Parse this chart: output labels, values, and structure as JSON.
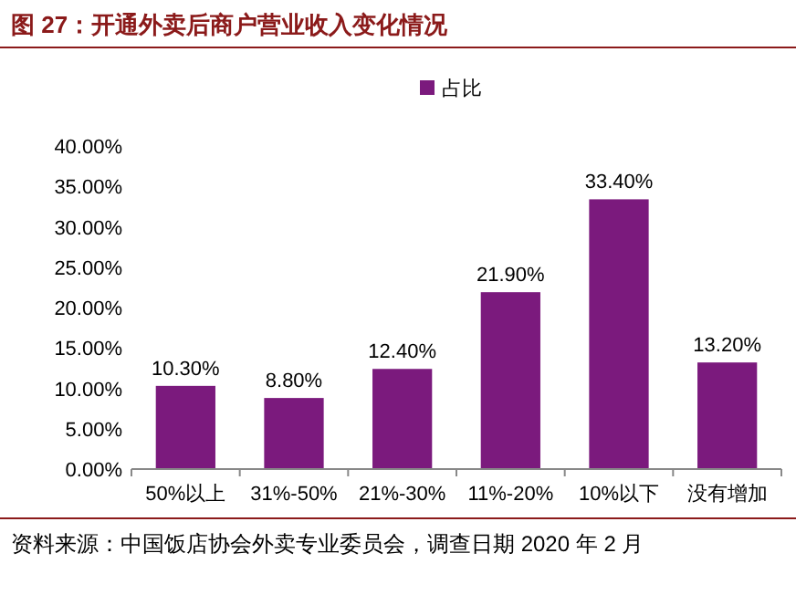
{
  "chart_data": {
    "type": "bar",
    "title": "图 27：开通外卖后商户营业收入变化情况",
    "categories": [
      "50%以上",
      "31%-50%",
      "21%-30%",
      "11%-20%",
      "10%以下",
      "没有增加"
    ],
    "series": [
      {
        "name": "占比",
        "color": "#7b1a7d",
        "values": [
          10.3,
          8.8,
          12.4,
          21.9,
          33.4,
          13.2
        ]
      }
    ],
    "value_labels": [
      "10.30%",
      "8.80%",
      "12.40%",
      "21.90%",
      "33.40%",
      "13.20%"
    ],
    "ylim": [
      0,
      40
    ],
    "yticks": [
      {
        "value": 0,
        "label": "0.00%"
      },
      {
        "value": 5,
        "label": "5.00%"
      },
      {
        "value": 10,
        "label": "10.00%"
      },
      {
        "value": 15,
        "label": "15.00%"
      },
      {
        "value": 20,
        "label": "20.00%"
      },
      {
        "value": 25,
        "label": "25.00%"
      },
      {
        "value": 30,
        "label": "30.00%"
      },
      {
        "value": 35,
        "label": "35.00%"
      },
      {
        "value": 40,
        "label": "40.00%"
      }
    ],
    "legend": "top",
    "annotations": [
      "资料来源：中国饭店协会外卖专业委员会，调查日期 2020 年 2 月"
    ]
  }
}
